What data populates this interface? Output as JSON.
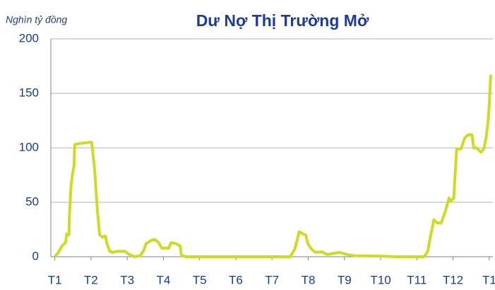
{
  "chart_data": {
    "type": "line",
    "title": "Dư Nợ Thị Trường Mở",
    "ylabel": "Nghìn tỷ đồng",
    "x": [
      0,
      0.1,
      0.2,
      0.3,
      0.33,
      0.39,
      0.41,
      0.45,
      0.49,
      0.53,
      0.55,
      0.69,
      0.94,
      1.02,
      1.1,
      1.18,
      1.24,
      1.32,
      1.4,
      1.44,
      1.52,
      1.61,
      1.73,
      1.93,
      2.07,
      2.2,
      2.36,
      2.46,
      2.52,
      2.66,
      2.76,
      2.87,
      2.95,
      3.15,
      3.21,
      3.35,
      3.46,
      3.5,
      3.64,
      6.5,
      6.63,
      6.69,
      6.75,
      6.85,
      6.93,
      6.99,
      7.09,
      7.2,
      7.38,
      7.52,
      7.68,
      7.87,
      8.07,
      8.27,
      9.06,
      9.45,
      10.2,
      10.3,
      10.39,
      10.47,
      10.57,
      10.67,
      10.79,
      10.89,
      10.94,
      11.02,
      11.1,
      11.22,
      11.32,
      11.42,
      11.52,
      11.57,
      11.65,
      11.77,
      11.85,
      11.91,
      11.97,
      12.0,
      12.04
    ],
    "values": [
      0,
      4,
      10,
      13,
      21,
      20,
      42,
      65,
      76,
      83,
      103,
      104,
      105,
      105,
      80,
      41,
      20,
      18,
      19,
      12,
      5,
      4,
      5,
      5,
      2,
      0,
      1,
      6,
      12,
      15,
      16,
      13,
      8,
      8,
      13,
      12,
      10,
      1,
      0,
      0,
      7,
      15,
      23,
      21,
      20,
      12,
      7,
      4,
      4.5,
      2,
      3,
      4,
      2,
      1,
      0.5,
      0,
      0,
      5,
      21,
      34,
      31,
      31,
      42,
      54,
      51,
      54,
      99,
      99,
      109,
      112,
      112,
      100,
      100,
      96,
      99,
      109,
      125,
      140,
      167
    ],
    "color": "#cddc22",
    "xlim": [
      -0.05,
      12.1
    ],
    "xticks": [
      {
        "value": 0,
        "label": "T1"
      },
      {
        "value": 1,
        "label": "T2"
      },
      {
        "value": 2,
        "label": "T3"
      },
      {
        "value": 3,
        "label": "T4"
      },
      {
        "value": 4,
        "label": "T5"
      },
      {
        "value": 5,
        "label": "T6"
      },
      {
        "value": 6,
        "label": "T7"
      },
      {
        "value": 7,
        "label": "T8"
      },
      {
        "value": 8,
        "label": "T9"
      },
      {
        "value": 9,
        "label": "T10"
      },
      {
        "value": 10,
        "label": "T11"
      },
      {
        "value": 11,
        "label": "T12"
      },
      {
        "value": 12,
        "label": "T1"
      }
    ],
    "ylim": [
      0,
      200
    ],
    "yticks": [
      0,
      50,
      100,
      150,
      200
    ],
    "grid": true
  }
}
